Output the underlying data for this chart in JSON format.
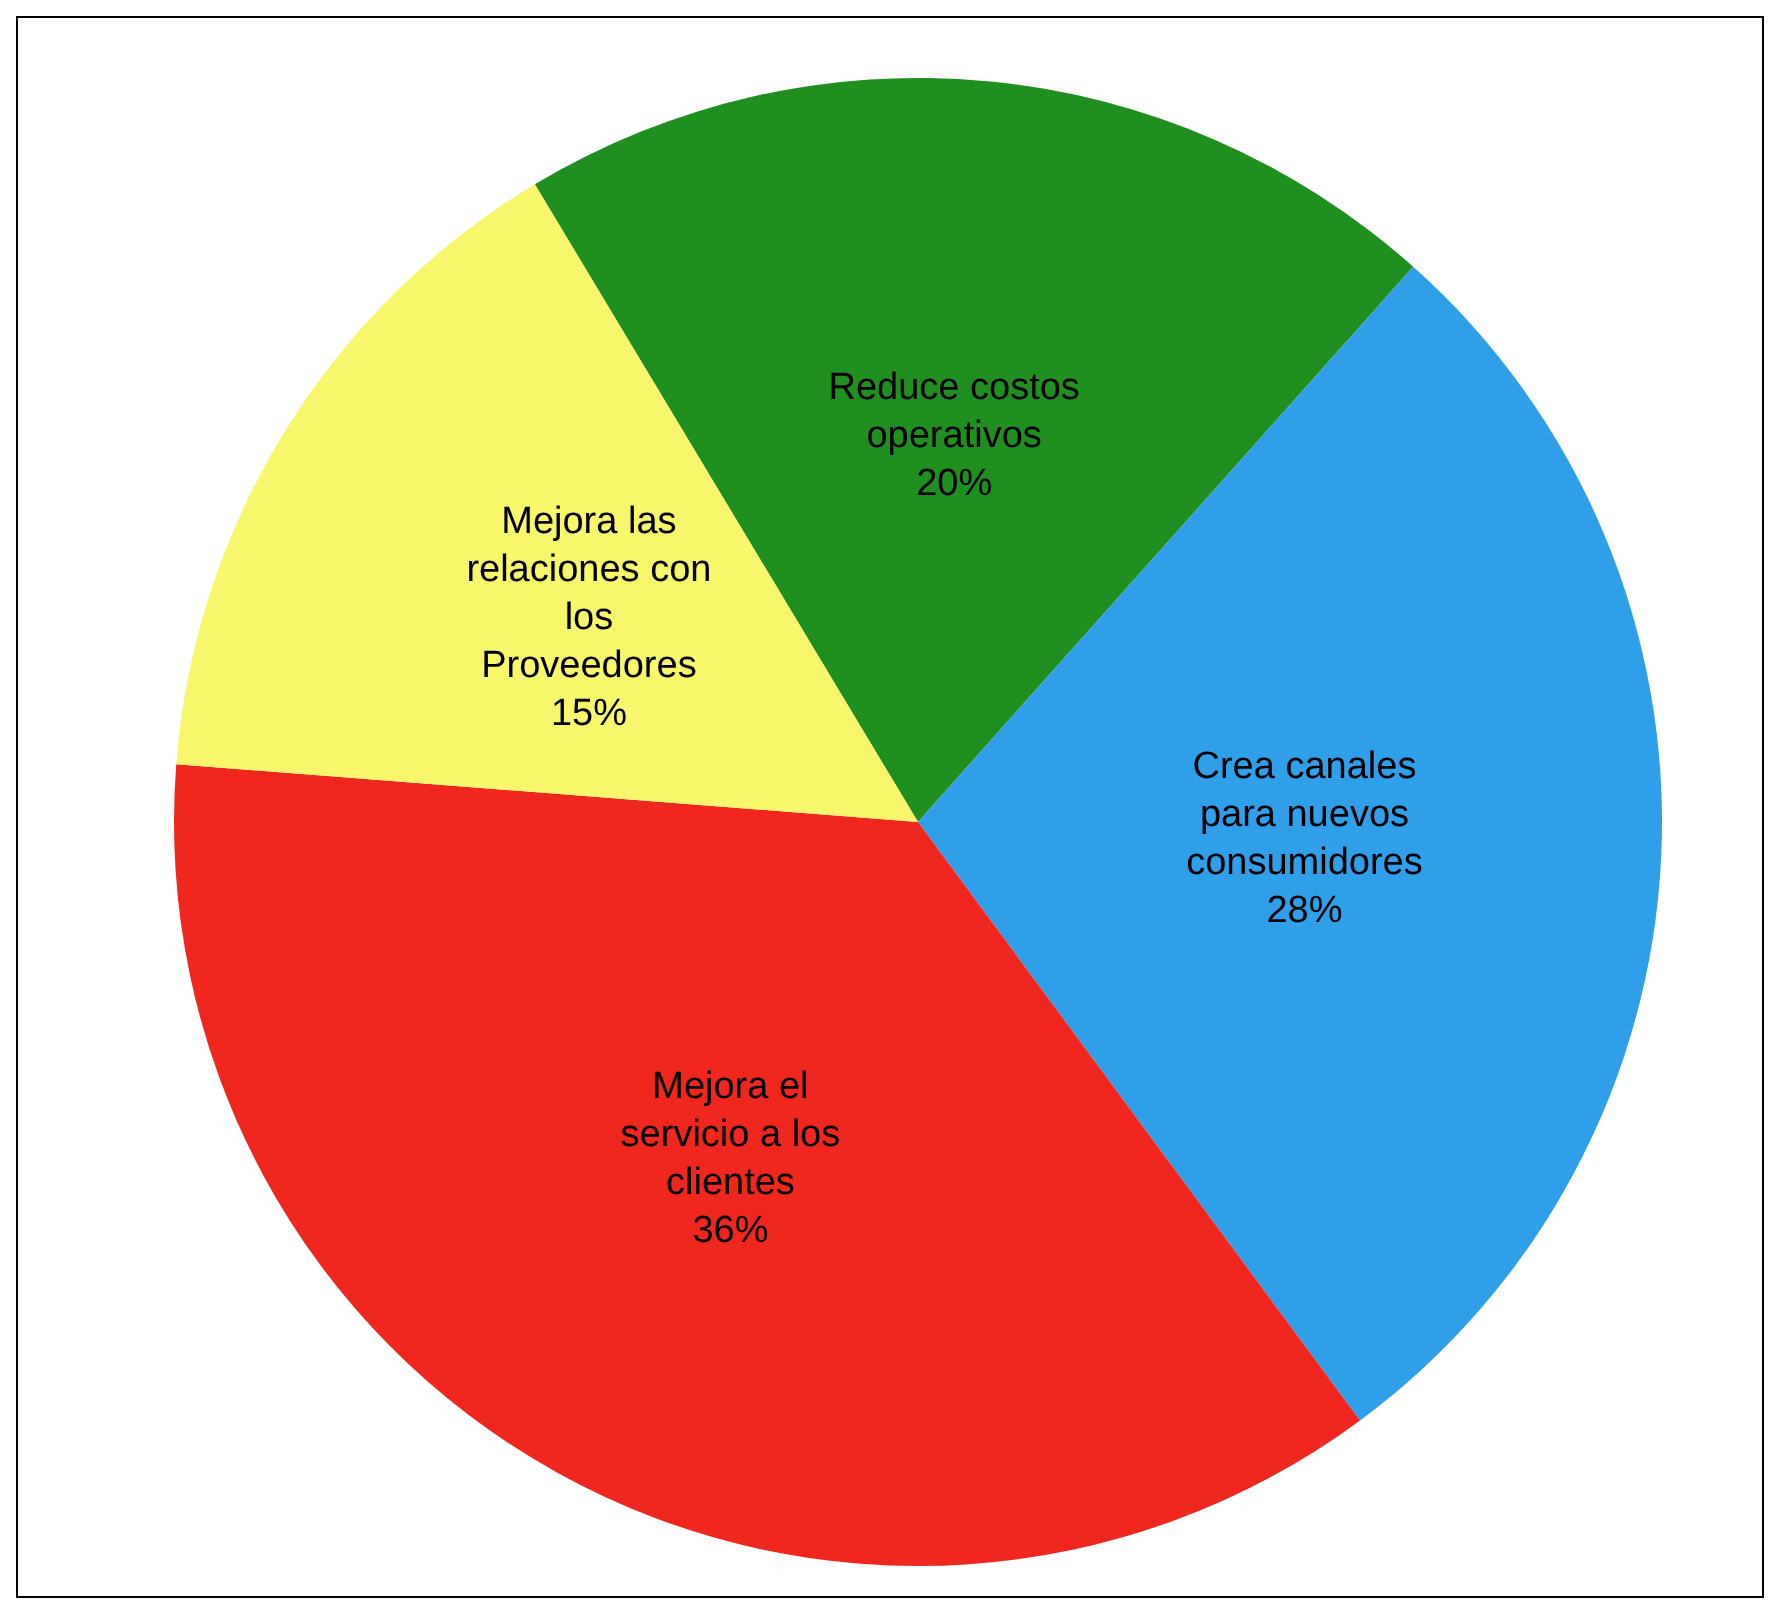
{
  "chart_data": {
    "type": "pie",
    "categories": [
      "Reduce costos operativos",
      "Crea canales para nuevos consumidores",
      "Mejora el servicio a los clientes",
      "Mejora las relaciones con los Proveedores"
    ],
    "values": [
      20,
      28,
      36,
      15
    ],
    "value_labels": [
      "20%",
      "28%",
      "36%",
      "15%"
    ],
    "colors": [
      "#1f8f1f",
      "#2e9fe8",
      "#f0271f",
      "#f8f66a"
    ],
    "legend": false
  }
}
